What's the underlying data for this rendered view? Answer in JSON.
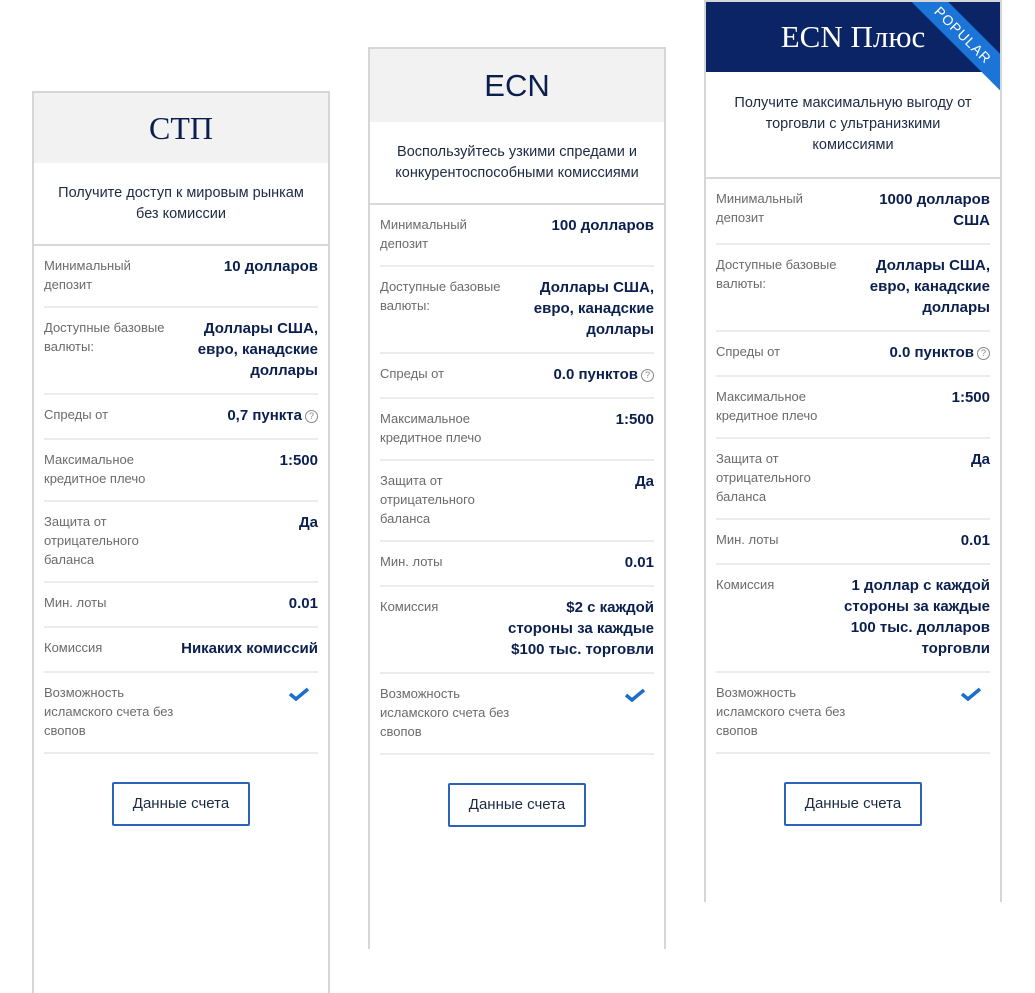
{
  "colors": {
    "navy": "#0a2466",
    "accent": "#1b74d6"
  },
  "plans": [
    {
      "title": "СТП",
      "description": "Получите доступ к мировым рынкам без комиссии",
      "rows": [
        {
          "label": "Минимальный депозит",
          "value": "10 долларов"
        },
        {
          "label": "Доступные базовые валюты:",
          "value": "Доллары США, евро, канадские доллары"
        },
        {
          "label": "Спреды от",
          "value": "0,7 пункта"
        },
        {
          "label": "Максимальное кредитное плечо",
          "value": "1:500"
        },
        {
          "label": "Защита от отрицательного баланса",
          "value": "Да"
        },
        {
          "label": "Мин. лоты",
          "value": "0.01"
        },
        {
          "label": "Комиссия",
          "value": "Никаких комиссий"
        },
        {
          "label": "Возможность исламского счета без свопов",
          "value": "check-icon"
        }
      ],
      "button": "Данные счета"
    },
    {
      "title": "ECN",
      "description": "Воспользуйтесь узкими спредами и конкурентоспособными комиссиями",
      "rows": [
        {
          "label": "Минимальный депозит",
          "value": "100 долларов"
        },
        {
          "label": "Доступные базовые валюты:",
          "value": "Доллары США, евро, канадские доллары"
        },
        {
          "label": "Спреды от",
          "value": "0.0 пунктов"
        },
        {
          "label": "Максимальное кредитное плечо",
          "value": "1:500"
        },
        {
          "label": "Защита от отрицательного баланса",
          "value": "Да"
        },
        {
          "label": "Мин. лоты",
          "value": "0.01"
        },
        {
          "label": "Комиссия",
          "value": "$2 с каждой стороны за каждые $100 тыс. торговли"
        },
        {
          "label": "Возможность исламского счета без свопов",
          "value": "check-icon"
        }
      ],
      "button": "Данные счета"
    },
    {
      "title": "ECN Плюс",
      "badge": "POPULAR",
      "description": "Получите максимальную выгоду от торговли с ультранизкими комиссиями",
      "rows": [
        {
          "label": "Минимальный депозит",
          "value": "1000 долларов США"
        },
        {
          "label": "Доступные базовые валюты:",
          "value": "Доллары США, евро, канадские доллары"
        },
        {
          "label": "Спреды от",
          "value": "0.0 пунктов"
        },
        {
          "label": "Максимальное кредитное плечо",
          "value": "1:500"
        },
        {
          "label": "Защита от отрицательного баланса",
          "value": "Да"
        },
        {
          "label": "Мин. лоты",
          "value": "0.01"
        },
        {
          "label": "Комиссия",
          "value": "1 доллар с каждой стороны за каждые 100 тыс. долларов торговли"
        },
        {
          "label": "Возможность исламского счета без свопов",
          "value": "check-icon"
        }
      ],
      "button": "Данные счета"
    }
  ]
}
